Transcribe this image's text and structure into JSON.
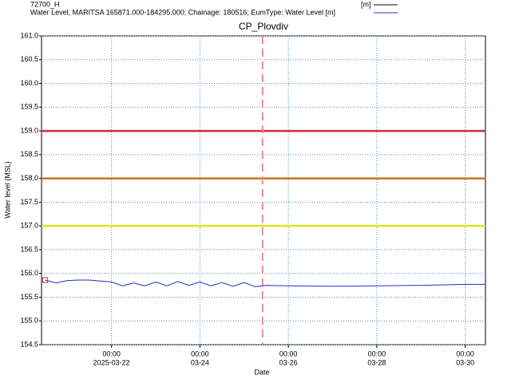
{
  "chart_data": {
    "type": "line",
    "title": "CP_Plovdiv",
    "ylabel": "Water level (MSL)",
    "xlabel": "Date",
    "ylim": [
      154.5,
      161.0
    ],
    "yticks": [
      {
        "value": 154.5,
        "label": "154.5"
      },
      {
        "value": 155,
        "label": "155.0"
      },
      {
        "value": 155.5,
        "label": "155.5"
      },
      {
        "value": 156,
        "label": "156.0"
      },
      {
        "value": 156.5,
        "label": "156.5"
      },
      {
        "value": 157,
        "label": "157.0"
      },
      {
        "value": 157.5,
        "label": "157.5"
      },
      {
        "value": 158,
        "label": "158.0"
      },
      {
        "value": 158.5,
        "label": "158.5"
      },
      {
        "value": 159,
        "label": "159.0"
      },
      {
        "value": 159.5,
        "label": "159.5"
      },
      {
        "value": 160,
        "label": "160.0"
      },
      {
        "value": 160.5,
        "label": "160.5"
      },
      {
        "value": 161,
        "label": "161.0"
      }
    ],
    "xlim": [
      "2025-03-20T10:00",
      "2025-03-30T11:00"
    ],
    "xticks": [
      {
        "value": "2025-03-22T00:00",
        "label": "00:00",
        "date": "2025-03-22"
      },
      {
        "value": "2025-03-24T00:00",
        "label": "00:00",
        "date": "03-24"
      },
      {
        "value": "2025-03-26T00:00",
        "label": "00:00",
        "date": "03-26"
      },
      {
        "value": "2025-03-28T00:00",
        "label": "00:00",
        "date": "03-28"
      },
      {
        "value": "2025-03-30T00:00",
        "label": "00:00",
        "date": "03-30"
      }
    ],
    "grid": true,
    "threshold_lines": [
      {
        "value": 159,
        "color": "#d42a3a"
      },
      {
        "value": 158,
        "color": "#c8731e"
      },
      {
        "value": 157,
        "color": "#dde41a"
      }
    ],
    "marker_line": {
      "x": "2025-03-25T10:00",
      "color": "#e88a96"
    },
    "series": [
      {
        "name": "72700_H",
        "unit": "[m]",
        "color": "#000000",
        "marker_color": "#e02020",
        "x": [
          "2025-03-20T12:00"
        ],
        "values": [
          155.86
        ]
      },
      {
        "name": "Water Level, MARITSA 165871.000-184295.000; Chainage: 180516; EumType: Water Level [m]",
        "color": "#2a2ad0",
        "x": [
          "2025-03-20T12:00",
          "2025-03-20T18:00",
          "2025-03-21T00:00",
          "2025-03-21T06:00",
          "2025-03-21T12:00",
          "2025-03-21T18:00",
          "2025-03-22T00:00",
          "2025-03-22T06:00",
          "2025-03-22T12:00",
          "2025-03-22T18:00",
          "2025-03-23T00:00",
          "2025-03-23T06:00",
          "2025-03-23T12:00",
          "2025-03-23T18:00",
          "2025-03-24T00:00",
          "2025-03-24T06:00",
          "2025-03-24T12:00",
          "2025-03-24T18:00",
          "2025-03-25T00:00",
          "2025-03-25T06:00",
          "2025-03-25T12:00",
          "2025-03-26T00:00",
          "2025-03-27T00:00",
          "2025-03-28T00:00",
          "2025-03-29T00:00",
          "2025-03-30T00:00",
          "2025-03-30T11:00"
        ],
        "values": [
          155.86,
          155.8,
          155.85,
          155.86,
          155.86,
          155.84,
          155.82,
          155.74,
          155.8,
          155.74,
          155.82,
          155.74,
          155.83,
          155.75,
          155.82,
          155.74,
          155.81,
          155.73,
          155.81,
          155.72,
          155.75,
          155.74,
          155.73,
          155.74,
          155.75,
          155.77,
          155.77
        ]
      }
    ]
  }
}
